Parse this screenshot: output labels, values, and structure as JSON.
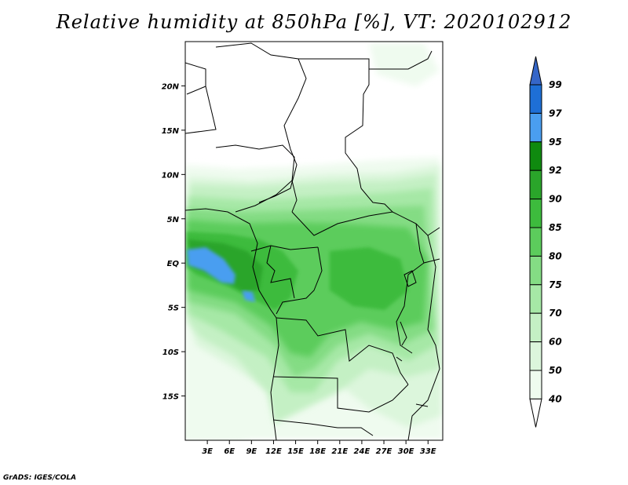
{
  "title": "Relative humidity at 850hPa [%], VT: 2020102912",
  "credit": "GrADS: IGES/COLA",
  "map": {
    "lat_labels": [
      "20N",
      "15N",
      "10N",
      "5N",
      "EQ",
      "5S",
      "10S",
      "15S"
    ],
    "lon_labels": [
      "3E",
      "6E",
      "9E",
      "12E",
      "15E",
      "18E",
      "21E",
      "24E",
      "27E",
      "30E",
      "33E"
    ],
    "lon_range": [
      0,
      35
    ],
    "lat_range": [
      -20,
      25
    ]
  },
  "colorbar": {
    "levels": [
      "99",
      "97",
      "95",
      "92",
      "90",
      "85",
      "80",
      "75",
      "70",
      "60",
      "50",
      "40"
    ],
    "colors": {
      "above_99": "#3566c8",
      "97_99": "#1e6fd6",
      "95_97": "#4a9ef0",
      "92_95": "#0f8a0f",
      "90_92": "#2aa52a",
      "85_90": "#3dbb3d",
      "80_85": "#5ccc5c",
      "75_80": "#84dc84",
      "70_75": "#a6e8a6",
      "60_70": "#c4f0c4",
      "50_60": "#dcf6dc",
      "40_50": "#effbef",
      "below_40": "#ffffff"
    }
  }
}
